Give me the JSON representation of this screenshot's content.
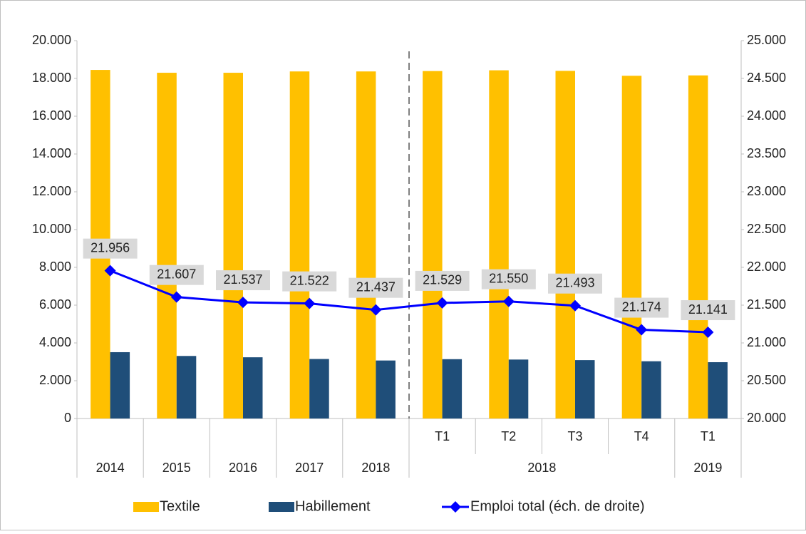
{
  "chart_data": {
    "type": "bar",
    "categories": [
      null,
      null,
      null,
      null,
      null,
      "T1",
      "T2",
      "T3",
      "T4",
      "T1"
    ],
    "category_groups": [
      "2014",
      "2015",
      "2016",
      "2017",
      "2018",
      "2018",
      "2019"
    ],
    "group_sizes": [
      1,
      1,
      1,
      1,
      1,
      4,
      1
    ],
    "series": [
      {
        "name": "Textile",
        "color": "#ffc000",
        "values": [
          18450,
          18300,
          18300,
          18370,
          18370,
          18390,
          18430,
          18400,
          18140,
          18160
        ]
      },
      {
        "name": "Habillement",
        "color": "#1f4e79",
        "values": [
          3510,
          3310,
          3240,
          3150,
          3070,
          3140,
          3120,
          3090,
          3030,
          2980
        ]
      },
      {
        "name": "Emploi total (éch. de droite)",
        "color": "#0000ff",
        "type": "line",
        "axis": "y2",
        "values": [
          21956,
          21607,
          21537,
          21522,
          21437,
          21529,
          21550,
          21493,
          21174,
          21141
        ],
        "value_labels": [
          "21.956",
          "21.607",
          "21.537",
          "21.522",
          "21.437",
          "21.529",
          "21.550",
          "21.493",
          "21.174",
          "21.141"
        ]
      }
    ],
    "ylim": [
      0,
      20000
    ],
    "yticks": [
      0,
      {
        "value": 2000,
        "label": "2.000"
      },
      {
        "value": 4000,
        "label": "4.000"
      },
      {
        "value": 6000,
        "label": "6.000"
      },
      {
        "value": 8000,
        "label": "8.000"
      },
      {
        "value": 10000,
        "label": "10.000"
      },
      {
        "value": 12000,
        "label": "12.000"
      },
      {
        "value": 14000,
        "label": "14.000"
      },
      {
        "value": 16000,
        "label": "16.000"
      },
      {
        "value": 18000,
        "label": "18.000"
      },
      {
        "value": 20000,
        "label": "20.000"
      }
    ],
    "y2lim": [
      20000,
      25000
    ],
    "y2ticks": [
      {
        "value": 20000,
        "label": "20.000"
      },
      {
        "value": 20500,
        "label": "20.500"
      },
      {
        "value": 21000,
        "label": "21.000"
      },
      {
        "value": 21500,
        "label": "21.500"
      },
      {
        "value": 22000,
        "label": "22.000"
      },
      {
        "value": 22500,
        "label": "22.500"
      },
      {
        "value": 23000,
        "label": "23.000"
      },
      {
        "value": 23500,
        "label": "23.500"
      },
      {
        "value": 24000,
        "label": "24.000"
      },
      {
        "value": 24500,
        "label": "24.500"
      },
      {
        "value": 25000,
        "label": "25.000"
      }
    ],
    "legend": "bottom"
  }
}
